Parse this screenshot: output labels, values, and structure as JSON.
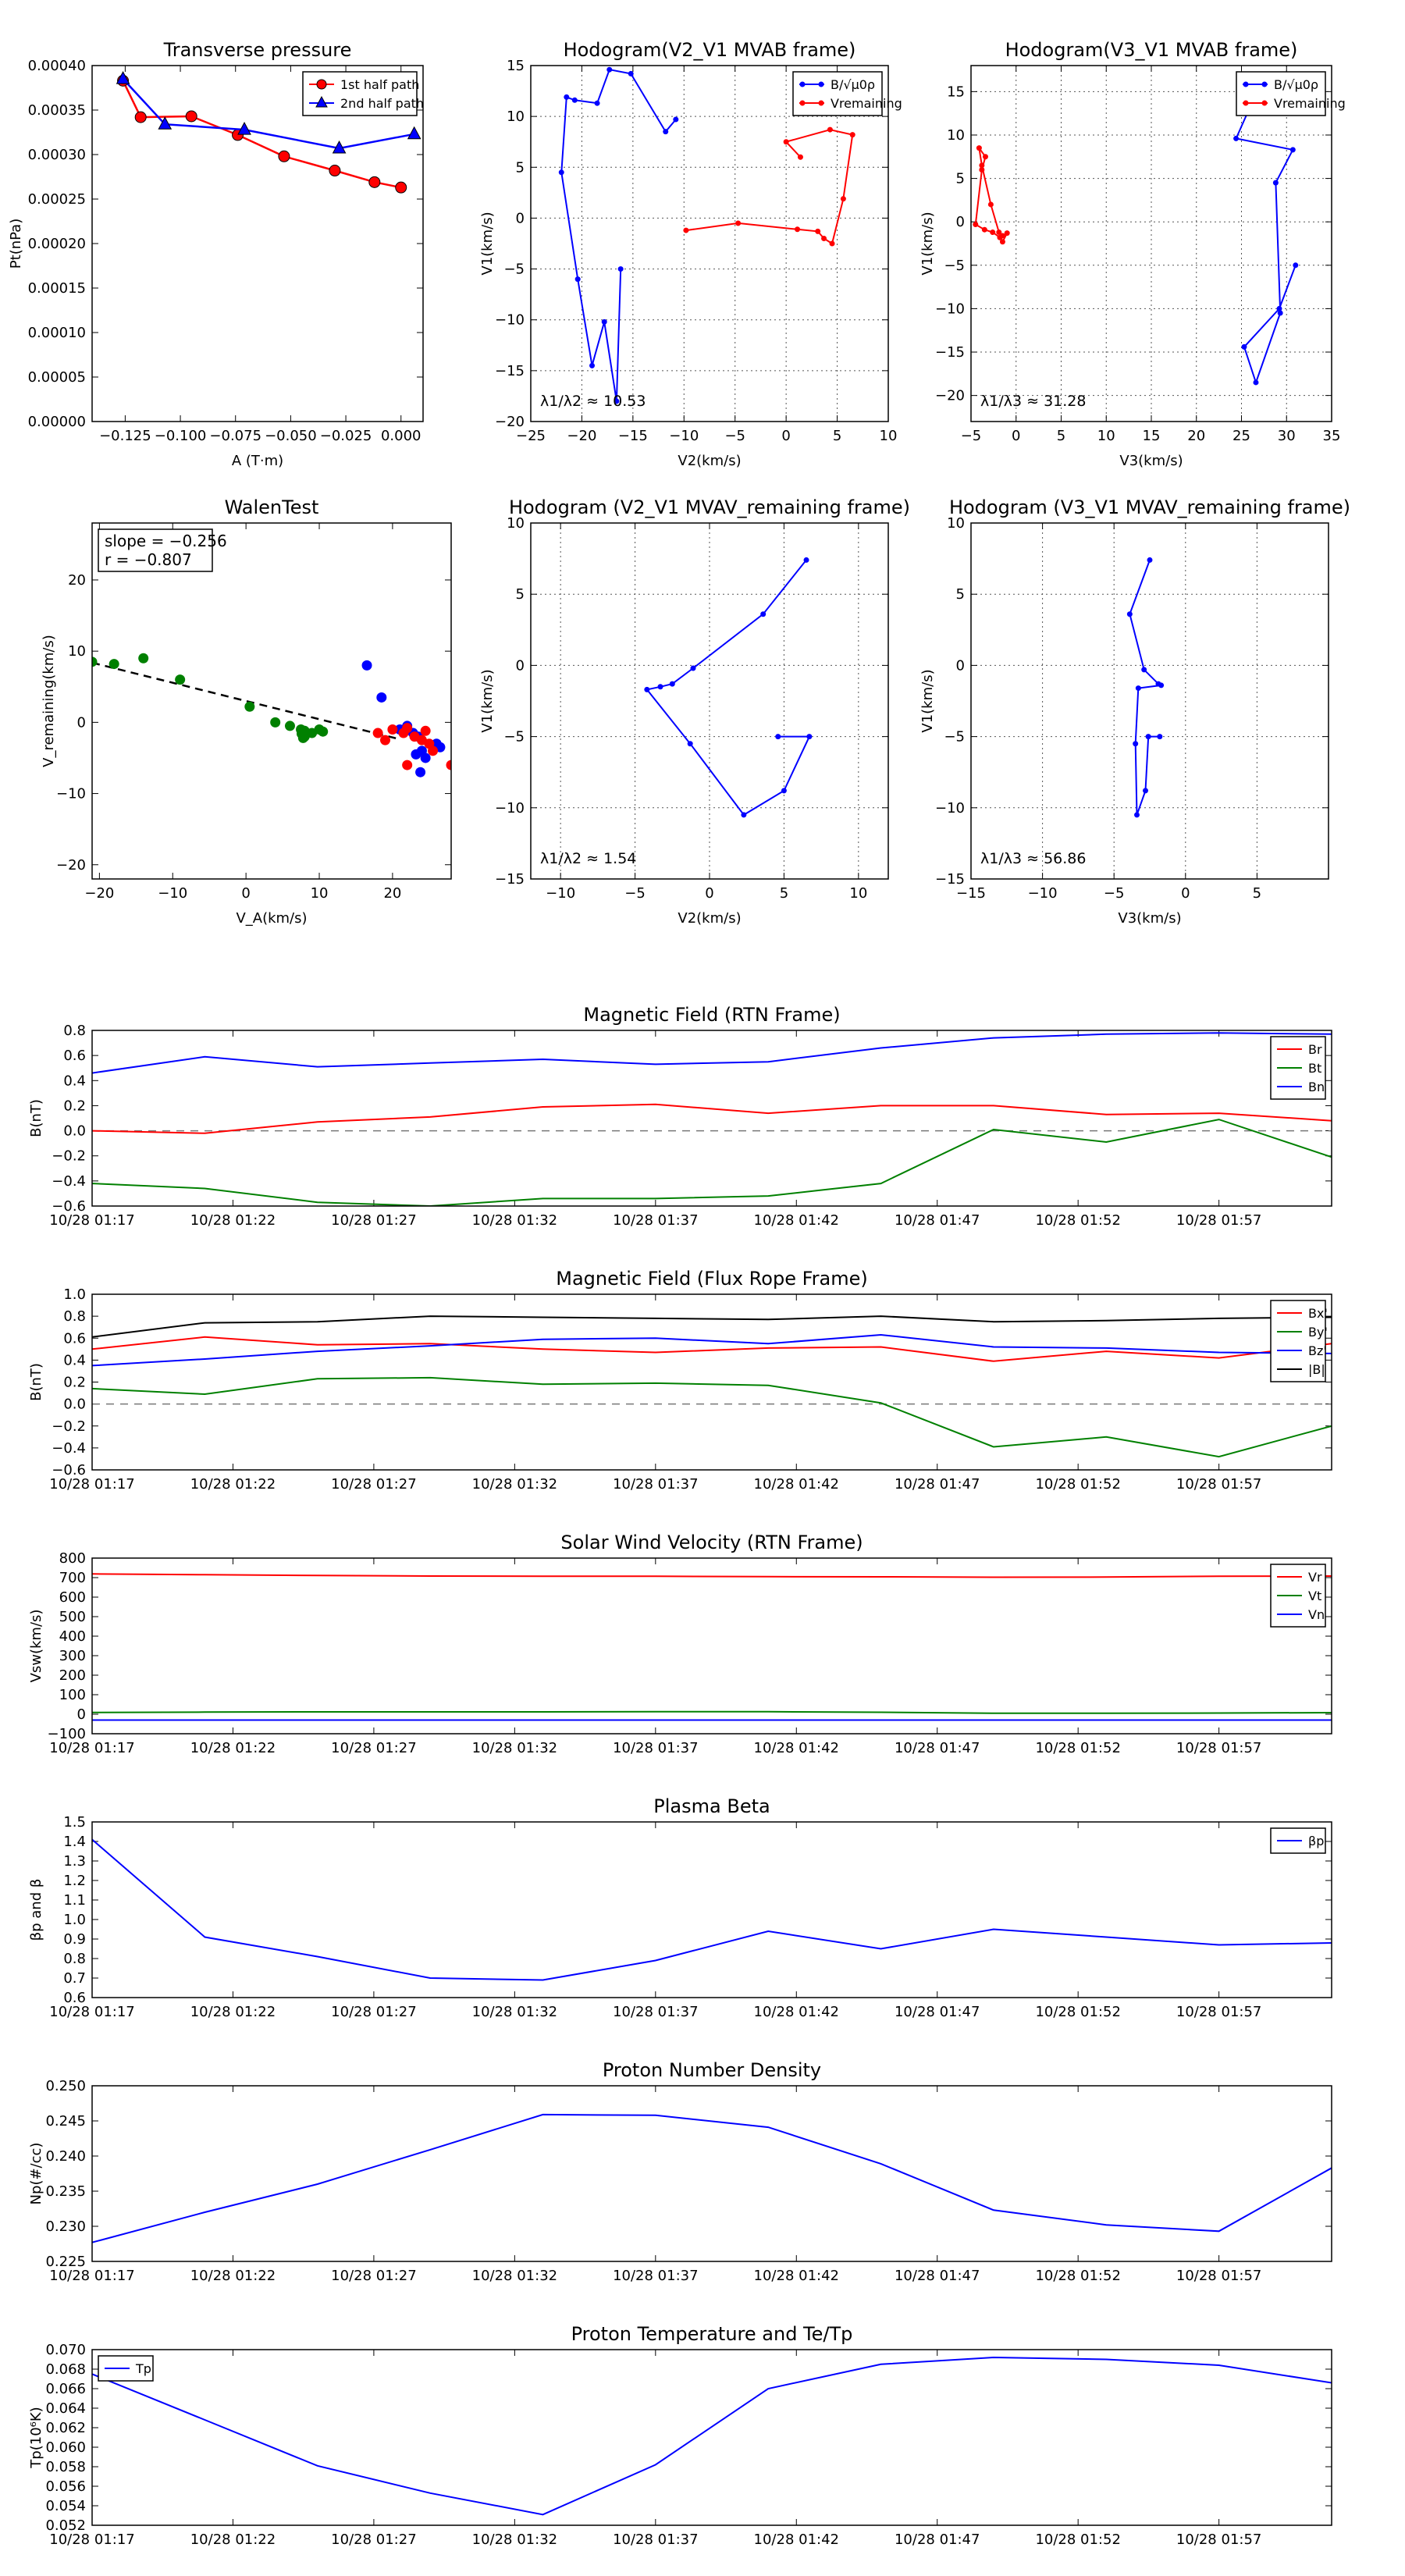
{
  "chart_data": [
    {
      "id": "tp",
      "type": "scatter",
      "title": "Transverse pressure",
      "xlabel": "A (T·m)",
      "ylabel": "Pt(nPa)",
      "xlim": [
        -0.14,
        0.01
      ],
      "ylim": [
        0.0,
        0.0004
      ],
      "xticks": [
        -0.125,
        -0.1,
        -0.075,
        -0.05,
        -0.025,
        0.0
      ],
      "xtick_labels": [
        "−0.125",
        "−0.100",
        "−0.075",
        "−0.050",
        "−0.025",
        "0.000"
      ],
      "yticks": [
        0,
        5e-05,
        0.0001,
        0.00015,
        0.0002,
        0.00025,
        0.0003,
        0.00035,
        0.0004
      ],
      "ytick_labels": [
        "0.00000",
        "0.00005",
        "0.00010",
        "0.00015",
        "0.00020",
        "0.00025",
        "0.00030",
        "0.00035",
        "0.00040"
      ],
      "grid": false,
      "legend": "top-right",
      "series": [
        {
          "name": "1st half path",
          "color": "#ff0000",
          "marker": "circle",
          "x": [
            -0.126,
            -0.118,
            -0.095,
            -0.074,
            -0.053,
            -0.03,
            -0.012,
            0.0
          ],
          "y": [
            0.000383,
            0.000342,
            0.000343,
            0.000322,
            0.000298,
            0.000282,
            0.000269,
            0.000263
          ]
        },
        {
          "name": "2nd half path",
          "color": "#0000ff",
          "marker": "triangle",
          "x": [
            -0.126,
            -0.107,
            -0.071,
            -0.028,
            0.006
          ],
          "y": [
            0.000385,
            0.000334,
            0.000328,
            0.000307,
            0.000323
          ]
        }
      ]
    },
    {
      "id": "hodo1",
      "type": "line",
      "title": "Hodogram(V2_V1 MVAB frame)",
      "xlabel": "V2(km/s)",
      "ylabel": "V1(km/s)",
      "xlim": [
        -25,
        10
      ],
      "ylim": [
        -20,
        15
      ],
      "xticks": [
        -25,
        -20,
        -15,
        -10,
        -5,
        0,
        5,
        10
      ],
      "yticks": [
        -20,
        -15,
        -10,
        -5,
        0,
        5,
        10,
        15
      ],
      "grid": true,
      "legend": "top-right",
      "annotation": "λ1/λ2 ≈ 10.53",
      "series": [
        {
          "name": "B/√μ0ρ",
          "color": "#0000ff",
          "x": [
            -16.2,
            -16.6,
            -17.8,
            -19.0,
            -20.4,
            -22.0,
            -21.5,
            -20.7,
            -18.5,
            -17.3,
            -15.2,
            -11.8,
            -10.8
          ],
          "y": [
            -5.0,
            -18.0,
            -10.2,
            -14.5,
            -6.0,
            4.5,
            11.9,
            11.6,
            11.3,
            14.6,
            14.2,
            8.5,
            9.7
          ]
        },
        {
          "name": "Vremaining",
          "color": "#ff0000",
          "x": [
            -9.8,
            -4.7,
            1.1,
            3.1,
            3.7,
            4.5,
            5.6,
            6.5,
            4.3,
            0.0,
            1.4
          ],
          "y": [
            -1.2,
            -0.5,
            -1.1,
            -1.3,
            -2.0,
            -2.5,
            1.9,
            8.2,
            8.7,
            7.5,
            6.0
          ]
        }
      ]
    },
    {
      "id": "hodo2",
      "type": "line",
      "title": "Hodogram(V3_V1 MVAB frame)",
      "xlabel": "V3(km/s)",
      "ylabel": "V1(km/s)",
      "xlim": [
        -5,
        35
      ],
      "ylim": [
        -23,
        18
      ],
      "xticks": [
        -5,
        0,
        5,
        10,
        15,
        20,
        25,
        30,
        35
      ],
      "yticks": [
        -20,
        -15,
        -10,
        -5,
        0,
        5,
        10,
        15
      ],
      "grid": true,
      "legend": "top-right",
      "annotation": "λ1/λ3 ≈ 31.28",
      "series": [
        {
          "name": "B/√μ0ρ",
          "color": "#0000ff",
          "x": [
            31.0,
            29.2,
            25.3,
            26.6,
            29.3,
            28.8,
            30.7,
            24.4,
            26.5,
            27.4,
            27.0,
            26.6,
            26.4
          ],
          "y": [
            -5.0,
            -10.0,
            -14.4,
            -18.5,
            -10.5,
            4.5,
            8.3,
            9.6,
            14.5,
            14.3,
            14.6,
            14.8,
            15.0
          ]
        },
        {
          "name": "Vremaining",
          "color": "#ff0000",
          "x": [
            -1.0,
            -1.5,
            -1.8,
            -2.6,
            -3.5,
            -4.5,
            -3.8,
            -3.4,
            -4.1,
            -3.8,
            -2.8,
            -1.9,
            -1.5
          ],
          "y": [
            -1.3,
            -2.3,
            -1.8,
            -1.2,
            -0.9,
            -0.3,
            6.0,
            7.5,
            8.5,
            6.5,
            2.0,
            -1.2,
            -1.6
          ]
        }
      ]
    },
    {
      "id": "walen",
      "type": "scatter",
      "title": "WalenTest",
      "xlabel": "V_A(km/s)",
      "ylabel": "V_remaining(km/s)",
      "xlim": [
        -21,
        28
      ],
      "ylim": [
        -22,
        28
      ],
      "xticks": [
        -20,
        -10,
        0,
        10,
        20
      ],
      "yticks": [
        -20,
        -10,
        0,
        10,
        20
      ],
      "grid": false,
      "stats": {
        "slope": "slope = −0.256",
        "r": "r = −0.807"
      },
      "fit": {
        "slope": -0.256,
        "intercept": 3.0
      },
      "groups": [
        {
          "color": "#008000",
          "x": [
            -21,
            -18,
            -14,
            -9,
            0.5,
            4,
            6,
            7.5,
            8,
            9,
            10,
            8,
            7.8,
            10.5,
            7.6
          ],
          "y": [
            8.5,
            8.2,
            9,
            6,
            2.2,
            0,
            -0.5,
            -1,
            -2,
            -1.5,
            -1,
            -1.2,
            -2.2,
            -1.3,
            -1.6
          ]
        },
        {
          "color": "#0000ff",
          "x": [
            16.5,
            18.5,
            21,
            22,
            22.8,
            23.2,
            23.8,
            24.5,
            26,
            26.5,
            23.5,
            24
          ],
          "y": [
            8,
            3.5,
            -1,
            -0.5,
            -1.5,
            -4.5,
            -7,
            -5,
            -3,
            -3.5,
            -2,
            -4
          ]
        },
        {
          "color": "#ff0000",
          "x": [
            18,
            19,
            20,
            21.5,
            22,
            23,
            24,
            24.5,
            25,
            25.5,
            22,
            28
          ],
          "y": [
            -1.5,
            -2.5,
            -1,
            -1.5,
            -6,
            -2,
            -2.5,
            -1.2,
            -3,
            -4,
            -0.8,
            -6
          ]
        }
      ]
    },
    {
      "id": "hodo3",
      "type": "line",
      "title": "Hodogram (V2_V1 MVAV_remaining frame)",
      "xlabel": "V2(km/s)",
      "ylabel": "V1(km/s)",
      "xlim": [
        -12,
        12
      ],
      "ylim": [
        -15,
        10
      ],
      "xticks": [
        -10,
        -5,
        0,
        5,
        10
      ],
      "yticks": [
        -15,
        -10,
        -5,
        0,
        5,
        10
      ],
      "grid": true,
      "annotation": "λ1/λ2 ≈ 1.54",
      "series": [
        {
          "name": "",
          "color": "#0000ff",
          "x": [
            4.6,
            6.7,
            5.0,
            2.3,
            -1.3,
            -4.2,
            -3.3,
            -2.5,
            -1.1,
            3.6,
            6.5
          ],
          "y": [
            -5.0,
            -5.0,
            -8.8,
            -10.5,
            -5.5,
            -1.7,
            -1.5,
            -1.3,
            -0.2,
            3.6,
            7.4
          ]
        }
      ]
    },
    {
      "id": "hodo4",
      "type": "line",
      "title": "Hodogram (V3_V1 MVAV_remaining frame)",
      "xlabel": "V3(km/s)",
      "ylabel": "V1(km/s)",
      "xlim": [
        -15,
        10
      ],
      "ylim": [
        -15,
        10
      ],
      "xticks": [
        -15,
        -10,
        -5,
        0,
        5
      ],
      "yticks": [
        -15,
        -10,
        -5,
        0,
        5,
        10
      ],
      "grid": true,
      "annotation": "λ1/λ3 ≈ 56.86",
      "series": [
        {
          "name": "",
          "color": "#0000ff",
          "x": [
            -1.8,
            -2.6,
            -2.8,
            -3.4,
            -3.5,
            -3.3,
            -1.7,
            -1.9,
            -2.9,
            -3.9,
            -2.5
          ],
          "y": [
            -5.0,
            -5.0,
            -8.8,
            -10.5,
            -5.5,
            -1.6,
            -1.4,
            -1.3,
            -0.3,
            3.6,
            7.4
          ]
        }
      ]
    },
    {
      "id": "bmag",
      "type": "line",
      "title": "Magnetic Field (RTN Frame)",
      "ylabel": "B(nT)",
      "x": [
        0,
        4,
        8,
        12,
        16,
        20,
        24,
        28,
        32,
        36,
        40,
        44
      ],
      "xlim": [
        0,
        44
      ],
      "ylim": [
        -0.6,
        0.8
      ],
      "yticks": [
        -0.6,
        -0.4,
        -0.2,
        0.0,
        0.2,
        0.4,
        0.6,
        0.8
      ],
      "ytick_labels": [
        "−0.6",
        "−0.4",
        "−0.2",
        "0.0",
        "0.2",
        "0.4",
        "0.6",
        "0.8"
      ],
      "zero_line": true,
      "legend": "top-right",
      "series": [
        {
          "name": "Br",
          "color": "#ff0000",
          "values": [
            0.0,
            -0.02,
            0.07,
            0.11,
            0.19,
            0.21,
            0.14,
            0.2,
            0.2,
            0.13,
            0.14,
            0.08
          ]
        },
        {
          "name": "Bt",
          "color": "#008000",
          "values": [
            -0.42,
            -0.46,
            -0.57,
            -0.6,
            -0.54,
            -0.54,
            -0.52,
            -0.42,
            0.01,
            -0.09,
            0.09,
            -0.21
          ]
        },
        {
          "name": "Bn",
          "color": "#0000ff",
          "values": [
            0.46,
            0.59,
            0.51,
            0.54,
            0.57,
            0.53,
            0.55,
            0.66,
            0.74,
            0.77,
            0.78,
            0.77
          ]
        }
      ]
    },
    {
      "id": "bfr",
      "type": "line",
      "title": "Magnetic Field (Flux Rope Frame)",
      "ylabel": "B(nT)",
      "x": [
        0,
        4,
        8,
        12,
        16,
        20,
        24,
        28,
        32,
        36,
        40,
        44
      ],
      "xlim": [
        0,
        44
      ],
      "ylim": [
        -0.6,
        1.0
      ],
      "yticks": [
        -0.6,
        -0.4,
        -0.2,
        0.0,
        0.2,
        0.4,
        0.6,
        0.8,
        1.0
      ],
      "ytick_labels": [
        "−0.6",
        "−0.4",
        "−0.2",
        "0.0",
        "0.2",
        "0.4",
        "0.6",
        "0.8",
        "1.0"
      ],
      "zero_line": true,
      "legend": "top-right",
      "series": [
        {
          "name": "Bx'",
          "color": "#ff0000",
          "values": [
            0.5,
            0.61,
            0.54,
            0.55,
            0.5,
            0.47,
            0.51,
            0.52,
            0.39,
            0.48,
            0.42,
            0.55
          ]
        },
        {
          "name": "By'",
          "color": "#008000",
          "values": [
            0.14,
            0.09,
            0.23,
            0.24,
            0.18,
            0.19,
            0.17,
            0.01,
            -0.39,
            -0.3,
            -0.48,
            -0.2
          ]
        },
        {
          "name": "Bz'",
          "color": "#0000ff",
          "values": [
            0.35,
            0.41,
            0.48,
            0.53,
            0.59,
            0.6,
            0.55,
            0.63,
            0.52,
            0.51,
            0.47,
            0.46
          ]
        },
        {
          "name": "|B|",
          "color": "#000000",
          "values": [
            0.61,
            0.74,
            0.75,
            0.8,
            0.79,
            0.78,
            0.77,
            0.8,
            0.75,
            0.76,
            0.78,
            0.79
          ]
        }
      ]
    },
    {
      "id": "vsw",
      "type": "line",
      "title": "Solar Wind Velocity (RTN Frame)",
      "ylabel": "Vsw(km/s)",
      "x": [
        0,
        4,
        8,
        12,
        16,
        20,
        24,
        28,
        32,
        36,
        40,
        44
      ],
      "xlim": [
        0,
        44
      ],
      "ylim": [
        -100,
        800
      ],
      "yticks": [
        -100,
        0,
        100,
        200,
        300,
        400,
        500,
        600,
        700,
        800
      ],
      "ytick_labels": [
        "−100",
        "0",
        "100",
        "200",
        "300",
        "400",
        "500",
        "600",
        "700",
        "800"
      ],
      "legend": "top-right",
      "series": [
        {
          "name": "Vr",
          "color": "#ff0000",
          "values": [
            719,
            715,
            711,
            708,
            707,
            707,
            705,
            704,
            702,
            703,
            707,
            708
          ]
        },
        {
          "name": "Vt",
          "color": "#008000",
          "values": [
            9,
            11,
            12,
            12,
            12,
            13,
            13,
            10,
            5,
            5,
            6,
            8
          ]
        },
        {
          "name": "Vn",
          "color": "#0000ff",
          "values": [
            -30,
            -30,
            -30,
            -30,
            -30,
            -30,
            -30,
            -30,
            -30,
            -30,
            -30,
            -30
          ]
        }
      ]
    },
    {
      "id": "beta",
      "type": "line",
      "title": "Plasma Beta",
      "ylabel": "βp and β",
      "x": [
        0,
        4,
        8,
        12,
        16,
        20,
        24,
        28,
        32,
        36,
        40,
        44
      ],
      "xlim": [
        0,
        44
      ],
      "ylim": [
        0.6,
        1.5
      ],
      "yticks": [
        0.6,
        0.7,
        0.8,
        0.9,
        1.0,
        1.1,
        1.2,
        1.3,
        1.4,
        1.5
      ],
      "ytick_labels": [
        "0.6",
        "0.7",
        "0.8",
        "0.9",
        "1.0",
        "1.1",
        "1.2",
        "1.3",
        "1.4",
        "1.5"
      ],
      "legend": "top-right",
      "series": [
        {
          "name": "βp",
          "color": "#0000ff",
          "values": [
            1.41,
            0.91,
            0.81,
            0.7,
            0.69,
            0.79,
            0.94,
            0.85,
            0.95,
            0.91,
            0.87,
            0.88
          ]
        }
      ]
    },
    {
      "id": "np",
      "type": "line",
      "title": "Proton Number Density",
      "ylabel": "Np(#/cc)",
      "x": [
        0,
        4,
        8,
        12,
        16,
        20,
        24,
        28,
        32,
        36,
        40,
        44
      ],
      "xlim": [
        0,
        44
      ],
      "ylim": [
        0.225,
        0.25
      ],
      "yticks": [
        0.225,
        0.23,
        0.235,
        0.24,
        0.245,
        0.25
      ],
      "ytick_labels": [
        "0.225",
        "0.230",
        "0.235",
        "0.240",
        "0.245",
        "0.250"
      ],
      "series": [
        {
          "name": "",
          "color": "#0000ff",
          "values": [
            0.2277,
            0.232,
            0.236,
            0.2409,
            0.2459,
            0.2458,
            0.2441,
            0.2389,
            0.2323,
            0.2302,
            0.2293,
            0.2383
          ]
        }
      ]
    },
    {
      "id": "tpr",
      "type": "line",
      "title": "Proton Temperature and Te/Tp",
      "ylabel": "Tp(10⁶K)",
      "x": [
        0,
        4,
        8,
        12,
        16,
        20,
        24,
        28,
        32,
        36,
        40,
        44
      ],
      "xlim": [
        0,
        44
      ],
      "ylim": [
        0.052,
        0.07
      ],
      "yticks": [
        0.052,
        0.054,
        0.056,
        0.058,
        0.06,
        0.062,
        0.064,
        0.066,
        0.068,
        0.07
      ],
      "ytick_labels": [
        "0.052",
        "0.054",
        "0.056",
        "0.058",
        "0.060",
        "0.062",
        "0.064",
        "0.066",
        "0.068",
        "0.070"
      ],
      "legend": "top-left",
      "series": [
        {
          "name": "Tp",
          "color": "#0000ff",
          "values": [
            0.0675,
            0.0628,
            0.0581,
            0.0553,
            0.0531,
            0.0582,
            0.066,
            0.0685,
            0.0692,
            0.069,
            0.0684,
            0.0666
          ]
        }
      ]
    }
  ],
  "time_axis": {
    "ticks": [
      0,
      5,
      10,
      15,
      20,
      25,
      30,
      35,
      40
    ],
    "labels": [
      "10/28 01:17",
      "10/28 01:22",
      "10/28 01:27",
      "10/28 01:32",
      "10/28 01:37",
      "10/28 01:42",
      "10/28 01:47",
      "10/28 01:52",
      "10/28 01:57"
    ]
  }
}
